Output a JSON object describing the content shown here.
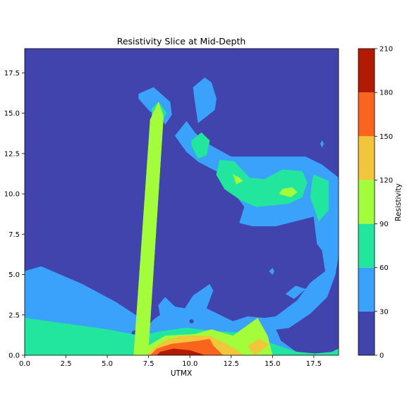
{
  "chart_data": {
    "type": "contourf",
    "title": "Resistivity Slice at Mid-Depth",
    "xlabel": "UTMX",
    "ylabel": "",
    "xlim": [
      0,
      19
    ],
    "ylim": [
      0,
      19
    ],
    "xticks": [
      "0.0",
      "2.5",
      "5.0",
      "7.5",
      "10.0",
      "12.5",
      "15.0",
      "17.5"
    ],
    "yticks": [
      "0.0",
      "2.5",
      "5.0",
      "7.5",
      "10.0",
      "12.5",
      "15.0",
      "17.5"
    ],
    "colorbar": {
      "label": "Resistivity",
      "levels": [
        0,
        30,
        60,
        90,
        120,
        150,
        180,
        210
      ],
      "tick_labels": [
        "0",
        "30",
        "60",
        "90",
        "120",
        "150",
        "180",
        "210"
      ],
      "colors": [
        "#4044ac",
        "#3ba2fb",
        "#22e59e",
        "#a3fd3b",
        "#f2c63a",
        "#f9651c",
        "#b21a04"
      ]
    },
    "regions": [
      {
        "level_index": 1,
        "polygon": [
          [
            0,
            5.2
          ],
          [
            1,
            5.5
          ],
          [
            3.5,
            4.4
          ],
          [
            5.5,
            3.3
          ],
          [
            7,
            2.3
          ],
          [
            7.5,
            1.7
          ],
          [
            7.2,
            1.5
          ],
          [
            6.8,
            1.6
          ],
          [
            6.5,
            1.5
          ],
          [
            6.2,
            0
          ],
          [
            16.7,
            0
          ],
          [
            15.5,
            0.9
          ],
          [
            15.2,
            1.6
          ],
          [
            16,
            1.7
          ],
          [
            17.3,
            2.6
          ],
          [
            18.3,
            3.6
          ],
          [
            18.8,
            5
          ],
          [
            19,
            6.2
          ],
          [
            19,
            11
          ],
          [
            18,
            11.8
          ],
          [
            17,
            12.3
          ],
          [
            12.5,
            12.3
          ],
          [
            10.9,
            13.2
          ],
          [
            10.3,
            13.8
          ],
          [
            9.8,
            14.5
          ],
          [
            9.1,
            13.6
          ],
          [
            9.8,
            12.6
          ],
          [
            10.5,
            12
          ],
          [
            11.8,
            11.3
          ],
          [
            13.3,
            9.2
          ],
          [
            13,
            8.2
          ],
          [
            13.8,
            8
          ],
          [
            15.2,
            8
          ],
          [
            17.5,
            8.6
          ],
          [
            17.7,
            6.9
          ],
          [
            18,
            6.5
          ],
          [
            18.2,
            5.2
          ],
          [
            17.3,
            4.5
          ],
          [
            16.5,
            3.4
          ],
          [
            15.2,
            2.4
          ],
          [
            14.5,
            2.3
          ],
          [
            13.5,
            2.4
          ],
          [
            12.6,
            2.1
          ],
          [
            11,
            2.9
          ],
          [
            11.4,
            4
          ],
          [
            11.2,
            4.4
          ],
          [
            10.2,
            3.7
          ],
          [
            9.7,
            2.9
          ],
          [
            9.1,
            3
          ],
          [
            8.5,
            3.6
          ],
          [
            8.1,
            3.1
          ],
          [
            8.2,
            2.5
          ],
          [
            7.8,
            2.2
          ],
          [
            7.2,
            1.5
          ],
          [
            6.2,
            0
          ],
          [
            0,
            0
          ]
        ]
      },
      {
        "level_index": 1,
        "polygon": [
          [
            6.9,
            16.2
          ],
          [
            7.8,
            16.6
          ],
          [
            8.8,
            15.7
          ],
          [
            8.9,
            14.9
          ],
          [
            8.5,
            14.3
          ],
          [
            8.2,
            14.9
          ],
          [
            7.6,
            15.1
          ],
          [
            6.9,
            15.9
          ]
        ]
      },
      {
        "level_index": 1,
        "polygon": [
          [
            10.9,
            17.2
          ],
          [
            11.3,
            16.9
          ],
          [
            11.6,
            15.9
          ],
          [
            11.5,
            15.2
          ],
          [
            11,
            14.8
          ],
          [
            10.5,
            14.4
          ],
          [
            10.3,
            15.8
          ],
          [
            10.2,
            16.6
          ],
          [
            10.9,
            17.2
          ]
        ]
      },
      {
        "level_index": 1,
        "polygon": [
          [
            14.8,
            5.2
          ],
          [
            15,
            5
          ],
          [
            15.1,
            5.2
          ],
          [
            15,
            5.4
          ]
        ]
      },
      {
        "level_index": 1,
        "polygon": [
          [
            15.8,
            3.8
          ],
          [
            16.3,
            3.5
          ],
          [
            17,
            4.1
          ],
          [
            16.4,
            4.3
          ]
        ]
      },
      {
        "level_index": 1,
        "polygon": [
          [
            17.9,
            13.1
          ],
          [
            18,
            12.9
          ],
          [
            18.1,
            13.1
          ],
          [
            18,
            13.3
          ]
        ]
      },
      {
        "level_index": 2,
        "polygon": [
          [
            0,
            2.3
          ],
          [
            5,
            1.6
          ],
          [
            7,
            1.2
          ],
          [
            8.3,
            1.5
          ],
          [
            9.8,
            1.7
          ],
          [
            11.3,
            1.5
          ],
          [
            13,
            1.4
          ],
          [
            15.6,
            0.5
          ],
          [
            16.5,
            0.2
          ],
          [
            17.6,
            0.1
          ],
          [
            18.6,
            0.2
          ],
          [
            19,
            0.4
          ],
          [
            19,
            0
          ],
          [
            0,
            0
          ]
        ]
      },
      {
        "level_index": 2,
        "polygon": [
          [
            10.1,
            13.3
          ],
          [
            10.7,
            13.8
          ],
          [
            11.2,
            13.3
          ],
          [
            11,
            12.4
          ],
          [
            10.5,
            12.2
          ],
          [
            10.1,
            13
          ]
        ]
      },
      {
        "level_index": 2,
        "polygon": [
          [
            11.8,
            12.1
          ],
          [
            12.7,
            12
          ],
          [
            13.6,
            11
          ],
          [
            14.5,
            10.9
          ],
          [
            15.6,
            11.5
          ],
          [
            16.8,
            11.4
          ],
          [
            17.1,
            10.7
          ],
          [
            16.8,
            9.8
          ],
          [
            16,
            9.4
          ],
          [
            14,
            9.2
          ],
          [
            13.1,
            9.6
          ],
          [
            12.1,
            10.3
          ],
          [
            11.6,
            11.2
          ]
        ]
      },
      {
        "level_index": 2,
        "polygon": [
          [
            17.5,
            11.2
          ],
          [
            18.4,
            10.8
          ],
          [
            18.4,
            9
          ],
          [
            17.8,
            8.3
          ],
          [
            17.3,
            9.8
          ],
          [
            17.4,
            10.8
          ]
        ]
      },
      {
        "level_index": 2,
        "polygon": [
          [
            7.7,
            15.3
          ],
          [
            8.1,
            15.7
          ],
          [
            8.6,
            15
          ],
          [
            8.2,
            14.5
          ],
          [
            7.7,
            14.9
          ]
        ]
      },
      {
        "level_index": 3,
        "polygon": [
          [
            7.6,
            14.6
          ],
          [
            8.1,
            15.7
          ],
          [
            8.4,
            14.8
          ],
          [
            7.5,
            0.6
          ],
          [
            8.5,
            1.2
          ],
          [
            10.3,
            1.3
          ],
          [
            11.3,
            1.6
          ],
          [
            12.6,
            1.2
          ],
          [
            14.1,
            2.3
          ],
          [
            14.7,
            1.2
          ],
          [
            15,
            0
          ],
          [
            6.6,
            0
          ]
        ]
      },
      {
        "level_index": 3,
        "polygon": [
          [
            12.6,
            11.2
          ],
          [
            13,
            11
          ],
          [
            13.2,
            10.8
          ],
          [
            12.8,
            10.6
          ],
          [
            12.7,
            11
          ]
        ]
      },
      {
        "level_index": 3,
        "polygon": [
          [
            15.6,
            10.3
          ],
          [
            16.2,
            10.4
          ],
          [
            16.5,
            10.1
          ],
          [
            16.1,
            9.8
          ],
          [
            15.4,
            10
          ]
        ]
      },
      {
        "level_index": 4,
        "polygon": [
          [
            7.8,
            0.4
          ],
          [
            8.5,
            0.9
          ],
          [
            9.5,
            1.2
          ],
          [
            10.4,
            1.2
          ],
          [
            11.2,
            1.2
          ],
          [
            12.2,
            0.7
          ],
          [
            13,
            0.2
          ],
          [
            13.2,
            0
          ],
          [
            7.4,
            0
          ]
        ]
      },
      {
        "level_index": 4,
        "polygon": [
          [
            13.5,
            0.6
          ],
          [
            14.2,
            1
          ],
          [
            14.8,
            0.7
          ],
          [
            14.2,
            0.2
          ],
          [
            13.9,
            0
          ]
        ]
      },
      {
        "level_index": 5,
        "polygon": [
          [
            8,
            0.4
          ],
          [
            8.9,
            0.7
          ],
          [
            9.8,
            0.8
          ],
          [
            10.6,
            0.9
          ],
          [
            11.2,
            1
          ],
          [
            11.4,
            0.6
          ],
          [
            12,
            0
          ],
          [
            7.6,
            0
          ]
        ]
      },
      {
        "level_index": 6,
        "polygon": [
          [
            8.2,
            0.2
          ],
          [
            9,
            0.4
          ],
          [
            10,
            0.3
          ],
          [
            10.6,
            0.1
          ],
          [
            10.9,
            0
          ],
          [
            8,
            0
          ]
        ]
      }
    ],
    "small_dots": [
      {
        "level_index": 0,
        "x": 10.1,
        "y": 2.1
      }
    ]
  }
}
